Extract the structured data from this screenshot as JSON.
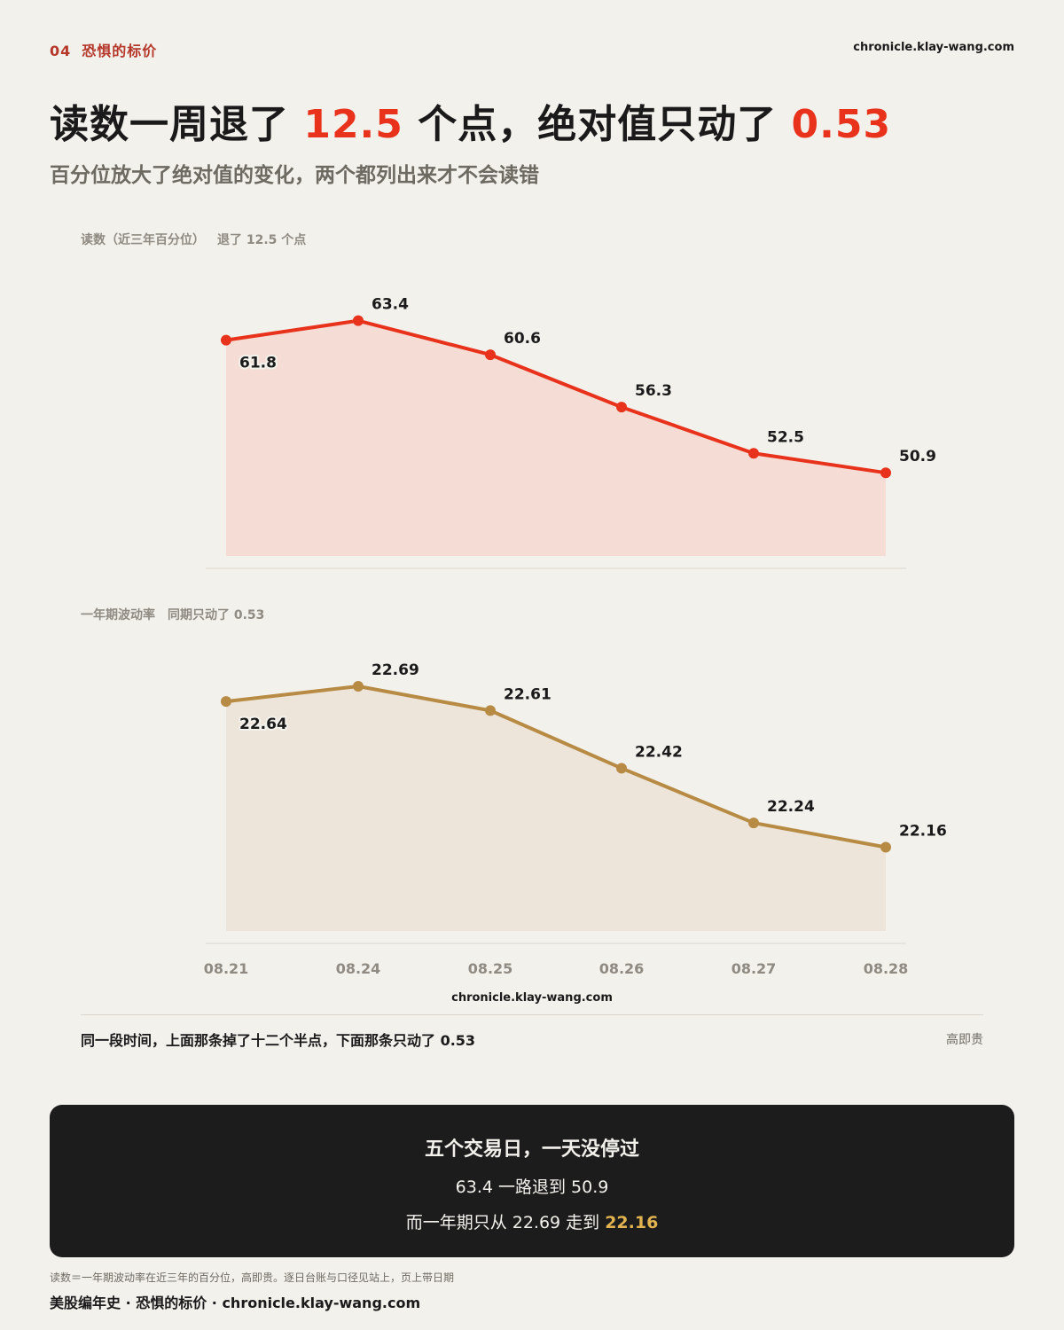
{
  "header": {
    "section_num": "04",
    "section_title": "恐惧的标价",
    "site": "chronicle.klay-wang.com"
  },
  "headline": {
    "part1": "读数一周退了 ",
    "hl1": "12.5",
    "part2": " 个点，绝对值只动了 ",
    "hl2": "0.53"
  },
  "subhead": "百分位放大了绝对值的变化，两个都列出来才不会读错",
  "colors": {
    "accent_red": "#e8321b",
    "area_red": "#f5ddd5",
    "accent_gold": "#b88b45",
    "area_gold": "#ede5da",
    "highlight_gold": "#e2b34f"
  },
  "chart_data": [
    {
      "type": "area",
      "label_name": "读数（近三年百分位）",
      "label_note": "退了 12.5 个点",
      "categories": [
        "08.21",
        "08.24",
        "08.25",
        "08.26",
        "08.27",
        "08.28"
      ],
      "values": [
        61.8,
        63.4,
        60.6,
        56.3,
        52.5,
        50.9
      ],
      "value_labels": [
        "61.8",
        "63.4",
        "60.6",
        "56.3",
        "52.5",
        "50.9"
      ],
      "ylim": [
        48,
        66
      ],
      "grid": false
    },
    {
      "type": "area",
      "label_name": "一年期波动率",
      "label_note": "同期只动了 0.53",
      "categories": [
        "08.21",
        "08.24",
        "08.25",
        "08.26",
        "08.27",
        "08.28"
      ],
      "values": [
        22.64,
        22.69,
        22.61,
        22.42,
        22.24,
        22.16
      ],
      "value_labels": [
        "22.64",
        "22.69",
        "22.61",
        "22.42",
        "22.24",
        "22.16"
      ],
      "ylim": [
        22.03,
        22.76
      ],
      "grid": false
    }
  ],
  "x_ticks": [
    "08.21",
    "08.24",
    "08.25",
    "08.26",
    "08.27",
    "08.28"
  ],
  "chart_credit": "chronicle.klay-wang.com",
  "caption": {
    "text": "同一段时间，上面那条掉了十二个半点，下面那条只动了 0.53",
    "credit": "高即贵"
  },
  "summary": {
    "title": "五个交易日，一天没停过",
    "line1": "63.4 一路退到 50.9",
    "line2_pre": "而一年期只从 22.69 走到 ",
    "line2_hl": "22.16"
  },
  "footer": {
    "note": "读数＝一年期波动率在近三年的百分位，高即贵。逐日台账与口径见站上，页上带日期",
    "brand": "美股编年史 · 恐惧的标价 · chronicle.klay-wang.com"
  }
}
